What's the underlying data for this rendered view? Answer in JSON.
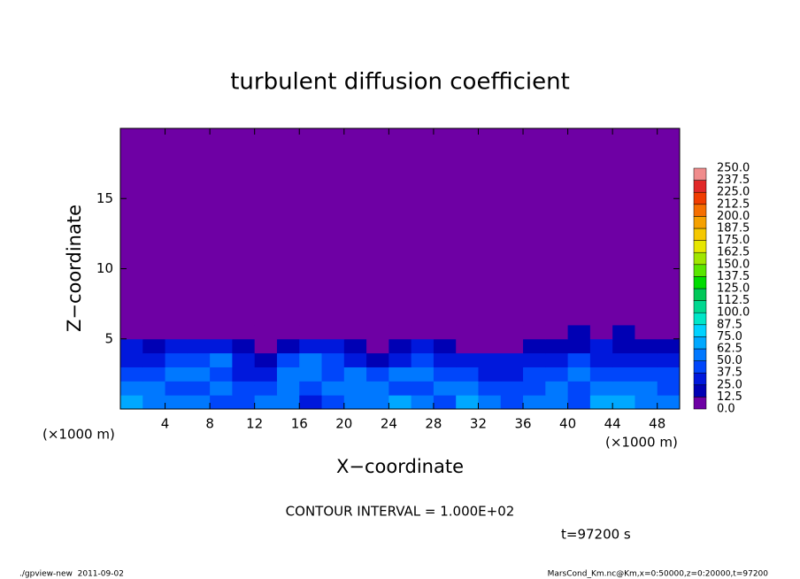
{
  "chart_data": {
    "type": "heatmap",
    "title": "turbulent diffusion coefficient",
    "xlabel": "X−coordinate",
    "ylabel": "Z−coordinate",
    "x_unit": "(×1000 m)",
    "y_unit": "(×1000 m)",
    "xlim": [
      0,
      50
    ],
    "ylim": [
      0,
      20
    ],
    "xticks": [
      4,
      8,
      12,
      16,
      20,
      24,
      28,
      32,
      36,
      40,
      44,
      48
    ],
    "yticks": [
      5,
      10,
      15
    ],
    "xbins": [
      0,
      2,
      4,
      6,
      8,
      10,
      12,
      14,
      16,
      18,
      20,
      22,
      24,
      26,
      28,
      30,
      32,
      34,
      36,
      38,
      40,
      42,
      44,
      46,
      48,
      50
    ],
    "ybins": [
      0,
      1,
      2,
      3,
      4,
      5,
      6,
      20
    ],
    "values": [
      [
        70,
        60,
        55,
        50,
        45,
        40,
        60,
        50,
        35,
        45,
        55,
        60,
        65,
        55,
        40,
        70,
        60,
        45,
        55,
        50,
        40,
        65,
        70,
        60,
        55
      ],
      [
        55,
        50,
        45,
        40,
        50,
        45,
        40,
        55,
        45,
        50,
        60,
        55,
        45,
        40,
        60,
        50,
        45,
        40,
        45,
        50,
        45,
        55,
        60,
        50,
        45
      ],
      [
        45,
        40,
        50,
        60,
        45,
        35,
        30,
        50,
        55,
        45,
        50,
        40,
        50,
        55,
        45,
        40,
        35,
        30,
        40,
        45,
        50,
        45,
        40,
        45,
        40
      ],
      [
        35,
        30,
        40,
        45,
        50,
        30,
        20,
        40,
        50,
        40,
        35,
        20,
        35,
        40,
        35,
        30,
        25,
        30,
        30,
        35,
        40,
        30,
        35,
        30,
        30
      ],
      [
        25,
        20,
        25,
        35,
        30,
        20,
        10,
        20,
        30,
        25,
        20,
        10,
        20,
        25,
        15,
        10,
        10,
        10,
        15,
        15,
        20,
        25,
        20,
        20,
        20
      ],
      [
        5,
        5,
        5,
        5,
        5,
        5,
        5,
        5,
        5,
        5,
        5,
        5,
        5,
        5,
        5,
        5,
        5,
        5,
        5,
        5,
        15,
        5,
        15,
        5,
        5
      ],
      [
        5,
        5,
        5,
        5,
        5,
        5,
        5,
        5,
        5,
        5,
        5,
        5,
        5,
        5,
        5,
        5,
        5,
        5,
        5,
        5,
        5,
        5,
        5,
        5,
        5
      ]
    ],
    "colorbar": {
      "levels": [
        {
          "value": 0,
          "label": "0.0"
        },
        12.5,
        {
          "value": 25,
          "label": "25.0"
        },
        37.5,
        {
          "value": 50,
          "label": "50.0"
        },
        62.5,
        {
          "value": 75,
          "label": "75.0"
        },
        87.5,
        {
          "value": 100,
          "label": "100.0"
        },
        112.5,
        {
          "value": 125,
          "label": "125.0"
        },
        137.5,
        {
          "value": 150,
          "label": "150.0"
        },
        162.5,
        {
          "value": 175,
          "label": "175.0"
        },
        187.5,
        {
          "value": 200,
          "label": "200.0"
        },
        212.5,
        {
          "value": 225,
          "label": "225.0"
        },
        237.5,
        {
          "value": 250,
          "label": "250.0"
        }
      ],
      "colors": [
        "#6e00a4",
        "#0000b4",
        "#0018dc",
        "#0046fa",
        "#0078ff",
        "#00a8ff",
        "#00d2ff",
        "#00e6c8",
        "#00d890",
        "#00c858",
        "#00dc00",
        "#5ae600",
        "#a0e600",
        "#e6e600",
        "#f5c800",
        "#f5a000",
        "#f56e00",
        "#f03c00",
        "#e12828",
        "#f08c8c"
      ]
    },
    "contour_note": "CONTOUR INTERVAL = 1.000E+02",
    "time_label": "t=97200 s",
    "footer_left": "./gpview-new  2011-09-02",
    "footer_right": "MarsCond_Km.nc@Km,x=0:50000,z=0:20000,t=97200"
  }
}
